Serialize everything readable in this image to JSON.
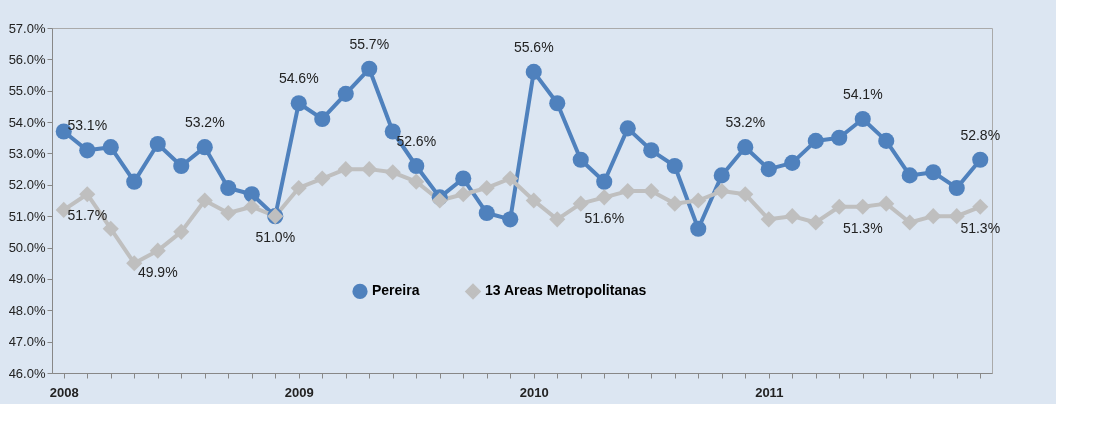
{
  "chart_data": {
    "type": "line",
    "categories": [
      "2008",
      null,
      null,
      null,
      null,
      null,
      null,
      null,
      null,
      null,
      "2009",
      null,
      null,
      null,
      null,
      null,
      null,
      null,
      null,
      null,
      "2010",
      null,
      null,
      null,
      null,
      null,
      null,
      null,
      null,
      null,
      "2011",
      null,
      null,
      null,
      null,
      null,
      null,
      null,
      null,
      null
    ],
    "series": [
      {
        "name": "Pereira",
        "color": "#4f81bd",
        "marker": "circle",
        "values": [
          53.7,
          53.1,
          53.2,
          52.1,
          53.3,
          52.6,
          53.2,
          51.9,
          51.7,
          51.0,
          54.6,
          54.1,
          54.9,
          55.7,
          53.7,
          52.6,
          51.6,
          52.2,
          51.1,
          50.9,
          55.6,
          54.6,
          52.8,
          52.1,
          53.8,
          53.1,
          52.6,
          50.6,
          52.3,
          53.2,
          52.5,
          52.7,
          53.4,
          53.5,
          54.1,
          53.4,
          52.3,
          52.4,
          51.9,
          52.8
        ],
        "value_labels": [
          null,
          "53.1%",
          null,
          null,
          null,
          null,
          "53.2%",
          null,
          null,
          null,
          "54.6%",
          null,
          null,
          "55.7%",
          null,
          "52.6%",
          null,
          null,
          null,
          null,
          "55.6%",
          null,
          null,
          null,
          null,
          null,
          null,
          null,
          null,
          "53.2%",
          null,
          null,
          null,
          null,
          "54.1%",
          null,
          null,
          null,
          null,
          "52.8%"
        ]
      },
      {
        "name": "13 Areas Metropolitanas",
        "color": "#bfbfbf",
        "marker": "diamond",
        "values": [
          51.2,
          51.7,
          50.6,
          49.5,
          49.9,
          50.5,
          51.5,
          51.1,
          51.3,
          51.0,
          51.9,
          52.2,
          52.5,
          52.5,
          52.4,
          52.1,
          51.5,
          51.7,
          51.9,
          52.2,
          51.5,
          50.9,
          51.4,
          51.6,
          51.8,
          51.8,
          51.4,
          51.5,
          51.8,
          51.7,
          50.9,
          51.0,
          50.8,
          51.3,
          51.3,
          51.4,
          50.8,
          51.0,
          51.0,
          51.3
        ],
        "value_labels": [
          null,
          "51.7%",
          null,
          null,
          "49.9%",
          null,
          null,
          null,
          null,
          "51.0%",
          null,
          null,
          null,
          null,
          null,
          null,
          null,
          null,
          null,
          null,
          null,
          null,
          null,
          "51.6%",
          null,
          null,
          null,
          null,
          null,
          null,
          null,
          null,
          null,
          null,
          "51.3%",
          null,
          null,
          null,
          null,
          "51.3%"
        ]
      }
    ],
    "ylim": [
      46,
      57
    ],
    "yticks": [
      {
        "value": 46,
        "label": "46.0%"
      },
      {
        "value": 47,
        "label": "47.0%"
      },
      {
        "value": 48,
        "label": "48.0%"
      },
      {
        "value": 49,
        "label": "49.0%"
      },
      {
        "value": 50,
        "label": "50.0%"
      },
      {
        "value": 51,
        "label": "51.0%"
      },
      {
        "value": 52,
        "label": "52.0%"
      },
      {
        "value": 53,
        "label": "53.0%"
      },
      {
        "value": 54,
        "label": "54.0%"
      },
      {
        "value": 55,
        "label": "55.0%"
      },
      {
        "value": 56,
        "label": "56.0%"
      },
      {
        "value": 57,
        "label": "57.0%"
      }
    ],
    "grid": false,
    "legend": "bottom"
  }
}
